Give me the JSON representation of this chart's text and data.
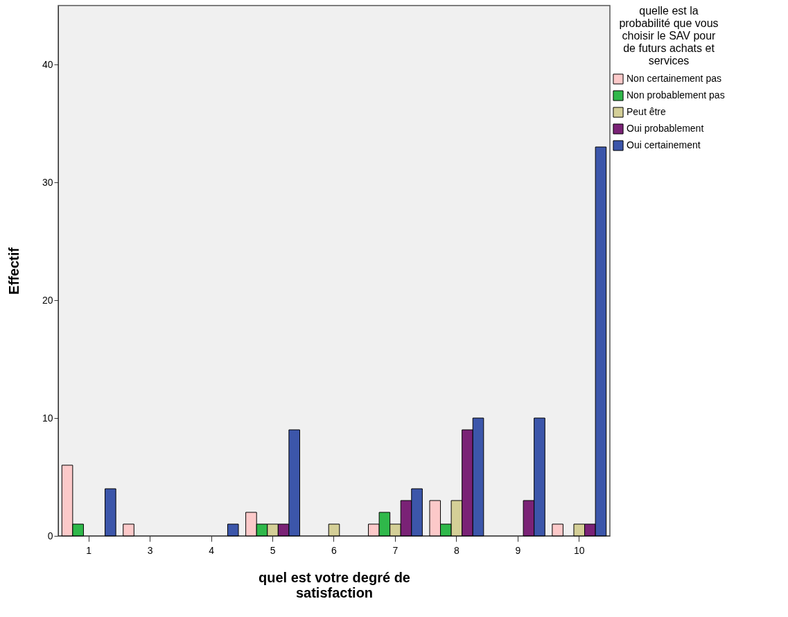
{
  "chart_data": {
    "type": "bar",
    "xlabel": "quel est votre degré de satisfaction",
    "ylabel": "Effectif",
    "legend_title": "quelle est la probabilité que vous choisir le SAV pour de futurs achats et services",
    "categories": [
      "1",
      "3",
      "4",
      "5",
      "6",
      "7",
      "8",
      "9",
      "10"
    ],
    "series": [
      {
        "name": "Non certainement pas",
        "color": "#fcc9c9",
        "values": [
          6,
          1,
          null,
          2,
          null,
          1,
          3,
          null,
          1
        ]
      },
      {
        "name": "Non probablement pas",
        "color": "#2fb84a",
        "values": [
          1,
          null,
          null,
          1,
          null,
          2,
          1,
          null,
          null
        ]
      },
      {
        "name": "Peut être",
        "color": "#d4cf97",
        "values": [
          null,
          null,
          null,
          1,
          1,
          1,
          3,
          null,
          1
        ]
      },
      {
        "name": "Oui probablement",
        "color": "#7a2276",
        "values": [
          null,
          null,
          null,
          1,
          null,
          3,
          9,
          3,
          1
        ]
      },
      {
        "name": "Oui certainement",
        "color": "#3c56aa",
        "values": [
          4,
          null,
          1,
          9,
          null,
          4,
          10,
          10,
          33
        ]
      }
    ],
    "ylim": [
      0,
      45
    ],
    "yticks": [
      0,
      10,
      20,
      30,
      40
    ],
    "grid": false,
    "legend": "top right"
  }
}
